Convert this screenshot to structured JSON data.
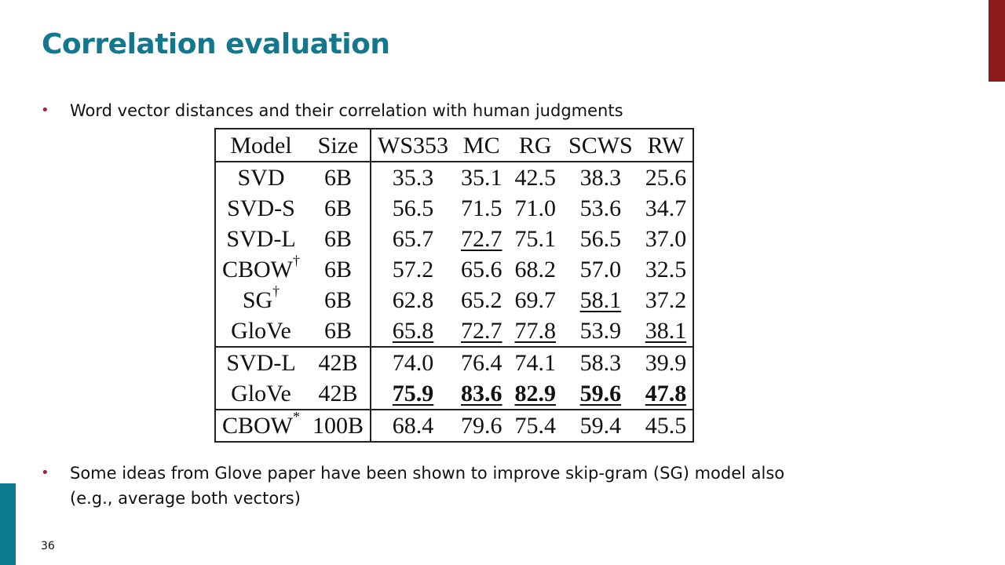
{
  "slide": {
    "title": "Correlation evaluation",
    "page_number": "36",
    "bullets": [
      "Word vector distances and their correlation with human judgments",
      "Some ideas from Glove paper have been shown to improve skip-gram (SG) model also",
      "(e.g., average both vectors)"
    ],
    "colors": {
      "title": "#13788d",
      "accent_top": "#8b1a1a",
      "accent_left": "#0d7a8d",
      "bullet": "#a32638"
    }
  },
  "table": {
    "headers": [
      "Model",
      "Size",
      "WS353",
      "MC",
      "RG",
      "SCWS",
      "RW"
    ],
    "rows": [
      {
        "model": "SVD",
        "sup": "",
        "size": "6B",
        "values": [
          "35.3",
          "35.1",
          "42.5",
          "38.3",
          "25.6"
        ],
        "underline": [
          false,
          false,
          false,
          false,
          false
        ],
        "bold": [
          false,
          false,
          false,
          false,
          false
        ]
      },
      {
        "model": "SVD-S",
        "sup": "",
        "size": "6B",
        "values": [
          "56.5",
          "71.5",
          "71.0",
          "53.6",
          "34.7"
        ],
        "underline": [
          false,
          false,
          false,
          false,
          false
        ],
        "bold": [
          false,
          false,
          false,
          false,
          false
        ]
      },
      {
        "model": "SVD-L",
        "sup": "",
        "size": "6B",
        "values": [
          "65.7",
          "72.7",
          "75.1",
          "56.5",
          "37.0"
        ],
        "underline": [
          false,
          true,
          false,
          false,
          false
        ],
        "bold": [
          false,
          false,
          false,
          false,
          false
        ]
      },
      {
        "model": "CBOW",
        "sup": "†",
        "size": "6B",
        "values": [
          "57.2",
          "65.6",
          "68.2",
          "57.0",
          "32.5"
        ],
        "underline": [
          false,
          false,
          false,
          false,
          false
        ],
        "bold": [
          false,
          false,
          false,
          false,
          false
        ]
      },
      {
        "model": "SG",
        "sup": "†",
        "size": "6B",
        "values": [
          "62.8",
          "65.2",
          "69.7",
          "58.1",
          "37.2"
        ],
        "underline": [
          false,
          false,
          false,
          true,
          false
        ],
        "bold": [
          false,
          false,
          false,
          false,
          false
        ]
      },
      {
        "model": "GloVe",
        "sup": "",
        "size": "6B",
        "values": [
          "65.8",
          "72.7",
          "77.8",
          "53.9",
          "38.1"
        ],
        "underline": [
          true,
          true,
          true,
          false,
          true
        ],
        "bold": [
          false,
          false,
          false,
          false,
          false
        ]
      },
      {
        "model": "SVD-L",
        "sup": "",
        "size": "42B",
        "values": [
          "74.0",
          "76.4",
          "74.1",
          "58.3",
          "39.9"
        ],
        "underline": [
          false,
          false,
          false,
          false,
          false
        ],
        "bold": [
          false,
          false,
          false,
          false,
          false
        ]
      },
      {
        "model": "GloVe",
        "sup": "",
        "size": "42B",
        "values": [
          "75.9",
          "83.6",
          "82.9",
          "59.6",
          "47.8"
        ],
        "underline": [
          true,
          true,
          true,
          true,
          true
        ],
        "bold": [
          true,
          true,
          true,
          true,
          true
        ]
      },
      {
        "model": "CBOW",
        "sup": "*",
        "size": "100B",
        "values": [
          "68.4",
          "79.6",
          "75.4",
          "59.4",
          "45.5"
        ],
        "underline": [
          false,
          false,
          false,
          false,
          false
        ],
        "bold": [
          false,
          false,
          false,
          false,
          false
        ]
      }
    ]
  }
}
